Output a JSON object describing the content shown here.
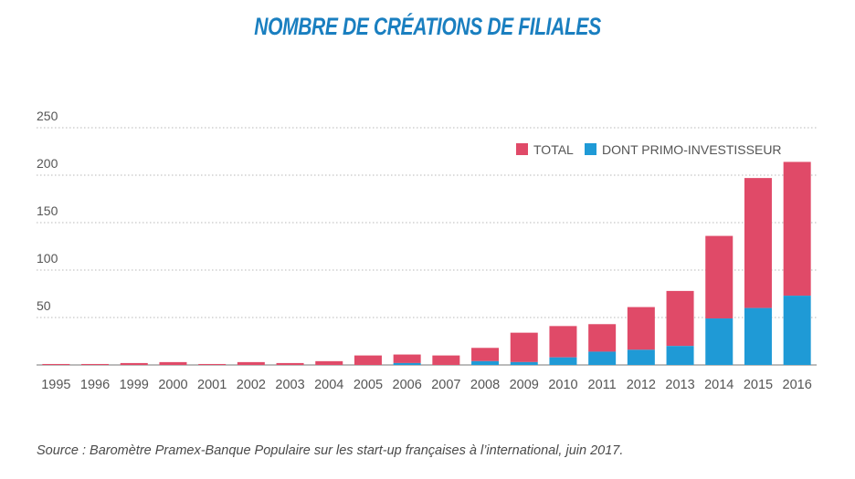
{
  "title": "NOMBRE DE CRÉATIONS DE FILIALES",
  "source": "Source : Baromètre Pramex-Banque Populaire sur les start-up françaises à l’international, juin 2017.",
  "colors": {
    "title": "#1a7fc0",
    "total": "#e04a68",
    "primo": "#1f9ad6",
    "grid": "#b8b8b8",
    "axis": "#777777"
  },
  "chart_data": {
    "type": "bar",
    "stacked": true,
    "categories": [
      "1995",
      "1996",
      "1999",
      "2000",
      "2001",
      "2002",
      "2003",
      "2004",
      "2005",
      "2006",
      "2007",
      "2008",
      "2009",
      "2010",
      "2011",
      "2012",
      "2013",
      "2014",
      "2015",
      "2016"
    ],
    "series": [
      {
        "name": "TOTAL",
        "values": [
          1,
          1,
          2,
          3,
          1,
          3,
          2,
          4,
          10,
          11,
          10,
          18,
          34,
          41,
          43,
          61,
          78,
          136,
          197,
          214
        ]
      },
      {
        "name": "DONT PRIMO-INVESTISSEUR",
        "values": [
          0,
          0,
          0,
          0,
          0,
          0,
          0,
          0,
          0,
          2,
          0,
          4,
          3,
          8,
          14,
          16,
          20,
          49,
          60,
          73
        ]
      }
    ],
    "ylim": [
      0,
      250
    ],
    "yticks": [
      "250",
      "200",
      "150",
      "100",
      "50"
    ],
    "ytick_values": [
      250,
      200,
      150,
      100,
      50
    ],
    "grid": true,
    "legend_position": "top-right"
  }
}
